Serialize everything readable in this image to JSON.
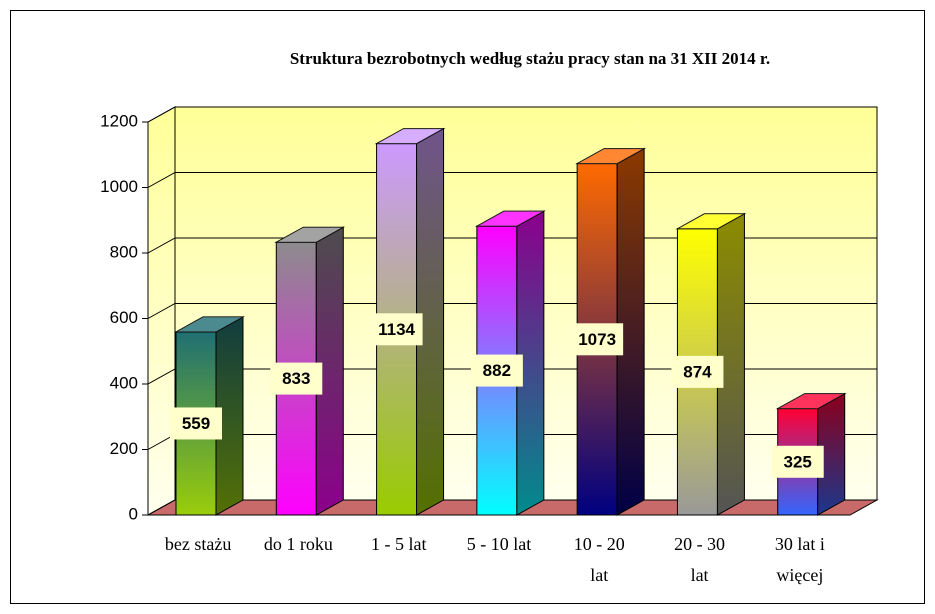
{
  "chart_data": {
    "type": "bar3d",
    "title": "Struktura bezrobotnych według stażu pracy stan na 31 XII 2014 r.",
    "categories": [
      "bez stażu",
      "do 1 roku",
      "1 - 5 lat",
      "5 - 10 lat",
      "10 - 20 lat",
      "20 - 30 lat",
      "30 lat i więcej"
    ],
    "values": [
      559,
      833,
      1134,
      882,
      1073,
      874,
      325
    ],
    "colors": [
      [
        "#1f6f73",
        "#9acd0a"
      ],
      [
        "#8c8c8c",
        "#ff00ff"
      ],
      [
        "#cc99ff",
        "#99cc00"
      ],
      [
        "#ff00ff",
        "#00ffff"
      ],
      [
        "#ff6a00",
        "#000080"
      ],
      [
        "#ffff00",
        "#999999"
      ],
      [
        "#ff0033",
        "#3366ff"
      ]
    ],
    "ylim": [
      0,
      1200
    ],
    "yticks": [
      0,
      200,
      400,
      600,
      800,
      1000,
      1200
    ],
    "grid": true
  }
}
